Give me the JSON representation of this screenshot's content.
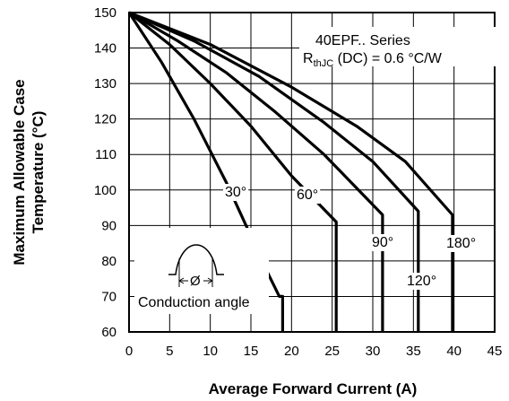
{
  "chart_data": {
    "type": "line",
    "xlabel": "Average Forward Current (A)",
    "ylabel": [
      "Maximum Allowable Case",
      "Temperature (°C)"
    ],
    "xlim": [
      0,
      45
    ],
    "ylim": [
      60,
      150
    ],
    "x_ticks": [
      "0",
      "5",
      "10",
      "15",
      "20",
      "25",
      "30",
      "35",
      "40",
      "45"
    ],
    "y_ticks": [
      "60",
      "70",
      "80",
      "90",
      "100",
      "110",
      "120",
      "130",
      "140",
      "150"
    ],
    "grid": true,
    "annotation": {
      "line1": "40EPF.. Series",
      "line2_main": "R",
      "line2_sub": "thJC",
      "line2_rest": " (DC) = 0.6 °C/W"
    },
    "inset": {
      "label": "Conduction angle",
      "symbol": "Ø"
    },
    "series": [
      {
        "name": "30°",
        "x": [
          0,
          4,
          8,
          12,
          15,
          17,
          18.5,
          18.9,
          18.9
        ],
        "y": [
          150,
          136,
          120,
          102,
          87,
          77,
          70,
          70,
          60
        ]
      },
      {
        "name": "60°",
        "x": [
          0,
          5,
          10,
          15,
          20,
          25.5,
          25.5
        ],
        "y": [
          150,
          141,
          130,
          118,
          104,
          91,
          60
        ]
      },
      {
        "name": "90°",
        "x": [
          0,
          6,
          12,
          18,
          24,
          31.2,
          31.2
        ],
        "y": [
          150,
          142,
          133,
          122,
          110,
          93,
          60
        ]
      },
      {
        "name": "120°",
        "x": [
          0,
          8,
          16,
          24,
          30,
          35.6,
          35.6
        ],
        "y": [
          150,
          142,
          132,
          119,
          108,
          94,
          60
        ]
      },
      {
        "name": "180°",
        "x": [
          0,
          10,
          20,
          28,
          34,
          39.8,
          39.8
        ],
        "y": [
          150,
          141,
          129,
          118,
          108,
          93,
          60
        ]
      }
    ]
  }
}
